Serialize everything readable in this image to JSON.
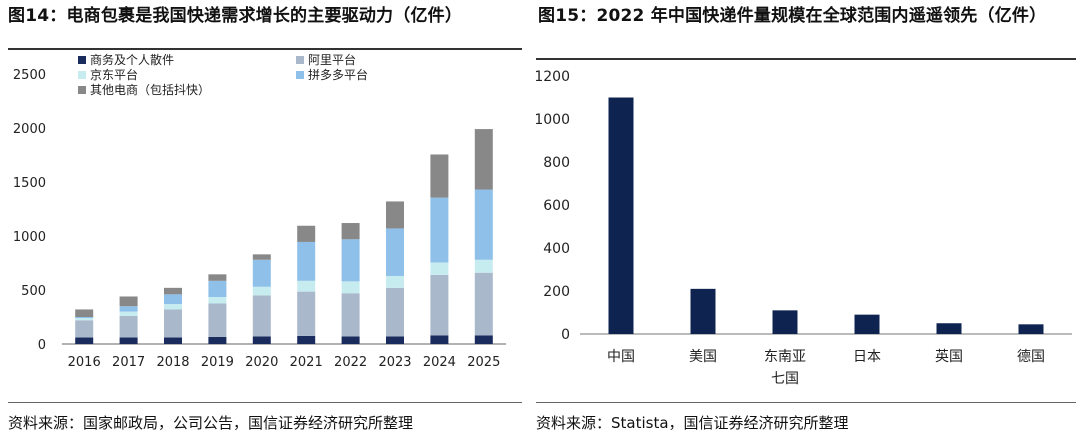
{
  "left_panel": {
    "title": "图14：电商包裹是我国快递需求增长的主要驱动力（亿件）",
    "source": "资料来源：国家邮政局，公司公告，国信证券经济研究所整理",
    "chart_data": {
      "type": "bar",
      "stacked": true,
      "categories": [
        "2016",
        "2017",
        "2018",
        "2019",
        "2020",
        "2021",
        "2022",
        "2023",
        "2024",
        "2025"
      ],
      "ylim": [
        0,
        2500
      ],
      "yticks": [
        0,
        500,
        1000,
        1500,
        2000,
        2500
      ],
      "series": [
        {
          "name": "商务及个人散件",
          "color": "#1a2b5e",
          "values": [
            60,
            60,
            60,
            65,
            70,
            75,
            70,
            70,
            80,
            80
          ]
        },
        {
          "name": "阿里平台",
          "color": "#a9b8cb",
          "values": [
            160,
            200,
            260,
            310,
            380,
            410,
            400,
            450,
            560,
            580
          ]
        },
        {
          "name": "京东平台",
          "color": "#c7ecf0",
          "values": [
            20,
            40,
            50,
            60,
            80,
            100,
            110,
            110,
            115,
            120
          ]
        },
        {
          "name": "拼多多平台",
          "color": "#8ec0ea",
          "values": [
            10,
            50,
            90,
            150,
            250,
            360,
            390,
            440,
            600,
            650
          ]
        },
        {
          "name": "其他电商（包括抖快）",
          "color": "#888888",
          "values": [
            70,
            90,
            60,
            60,
            50,
            150,
            150,
            250,
            400,
            560
          ]
        }
      ]
    }
  },
  "right_panel": {
    "title": "图15：2022 年中国快递件量规模在全球范围内遥遥领先（亿件）",
    "source": "资料来源：Statista，国信证券经济研究所整理",
    "chart_data": {
      "type": "bar",
      "categories": [
        "中国",
        "美国",
        "东南亚七国",
        "日本",
        "英国",
        "德国"
      ],
      "category_lines": [
        [
          "中国"
        ],
        [
          "美国"
        ],
        [
          "东南亚",
          "七国"
        ],
        [
          "日本"
        ],
        [
          "英国"
        ],
        [
          "德国"
        ]
      ],
      "values": [
        1100,
        210,
        110,
        90,
        50,
        45
      ],
      "color": "#0f2350",
      "ylim": [
        0,
        1200
      ],
      "yticks": [
        0,
        200,
        400,
        600,
        800,
        1000,
        1200
      ]
    }
  }
}
